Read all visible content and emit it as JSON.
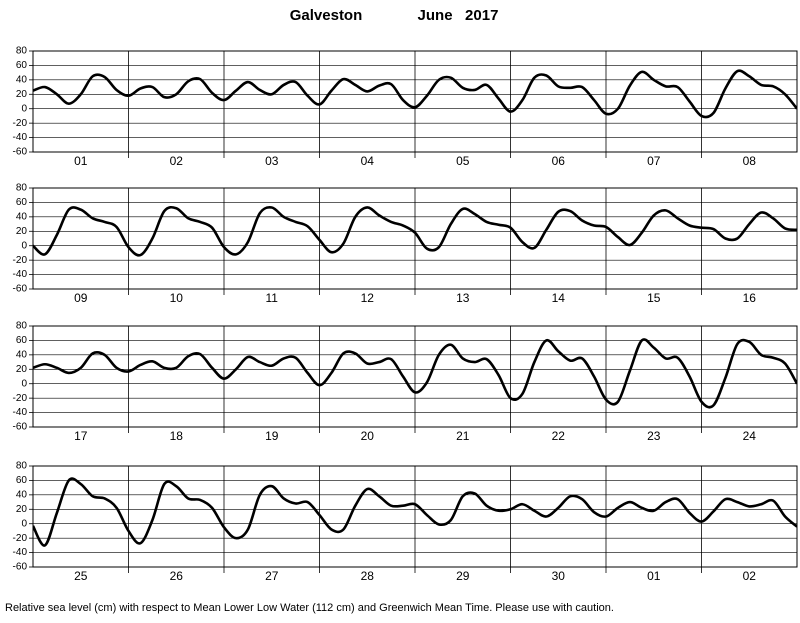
{
  "title": "Galveston",
  "subtitle": "June   2017",
  "footnote": "Relative sea level (cm) with respect to Mean Lower Low Water (112 cm) and Greenwich Mean Time. Please use with caution.",
  "chart_data": [
    {
      "type": "line",
      "grid": true,
      "xlim": [
        0,
        8
      ],
      "ylim": [
        -60,
        80
      ],
      "yticks": [
        -60,
        -40,
        -20,
        0,
        20,
        40,
        60,
        80
      ],
      "xticks": [
        {
          "value": 0.5,
          "label": "01"
        },
        {
          "value": 1.5,
          "label": "02"
        },
        {
          "value": 2.5,
          "label": "03"
        },
        {
          "value": 3.5,
          "label": "04"
        },
        {
          "value": 4.5,
          "label": "05"
        },
        {
          "value": 5.5,
          "label": "06"
        },
        {
          "value": 6.5,
          "label": "07"
        },
        {
          "value": 7.5,
          "label": "08"
        }
      ],
      "x": [
        0,
        0.125,
        0.25,
        0.375,
        0.5,
        0.625,
        0.75,
        0.875,
        1,
        1.125,
        1.25,
        1.375,
        1.5,
        1.625,
        1.75,
        1.875,
        2,
        2.125,
        2.25,
        2.375,
        2.5,
        2.625,
        2.75,
        2.875,
        3,
        3.125,
        3.25,
        3.375,
        3.5,
        3.625,
        3.75,
        3.875,
        4,
        4.125,
        4.25,
        4.375,
        4.5,
        4.625,
        4.75,
        4.875,
        5,
        5.125,
        5.25,
        5.375,
        5.5,
        5.625,
        5.75,
        5.875,
        6,
        6.125,
        6.25,
        6.375,
        6.5,
        6.625,
        6.75,
        6.875,
        7,
        7.125,
        7.25,
        7.375,
        7.5,
        7.625,
        7.75,
        7.875,
        8
      ],
      "series": [
        {
          "color": "#000000",
          "values": [
            25,
            30,
            20,
            7,
            20,
            45,
            44,
            26,
            18,
            28,
            30,
            16,
            20,
            38,
            41,
            22,
            12,
            25,
            37,
            26,
            20,
            33,
            37,
            18,
            6,
            25,
            41,
            33,
            24,
            32,
            34,
            12,
            2,
            18,
            40,
            43,
            29,
            26,
            33,
            14,
            -4,
            12,
            43,
            46,
            31,
            29,
            30,
            12,
            -7,
            0,
            32,
            51,
            40,
            31,
            30,
            10,
            -10,
            -6,
            28,
            52,
            45,
            33,
            31,
            20,
            0
          ]
        }
      ]
    },
    {
      "type": "line",
      "grid": true,
      "xlim": [
        0,
        8
      ],
      "ylim": [
        -60,
        80
      ],
      "yticks": [
        -60,
        -40,
        -20,
        0,
        20,
        40,
        60,
        80
      ],
      "xticks": [
        {
          "value": 0.5,
          "label": "09"
        },
        {
          "value": 1.5,
          "label": "10"
        },
        {
          "value": 2.5,
          "label": "11"
        },
        {
          "value": 3.5,
          "label": "12"
        },
        {
          "value": 4.5,
          "label": "13"
        },
        {
          "value": 5.5,
          "label": "14"
        },
        {
          "value": 6.5,
          "label": "15"
        },
        {
          "value": 7.5,
          "label": "16"
        }
      ],
      "x": [
        0,
        0.125,
        0.25,
        0.375,
        0.5,
        0.625,
        0.75,
        0.875,
        1,
        1.125,
        1.25,
        1.375,
        1.5,
        1.625,
        1.75,
        1.875,
        2,
        2.125,
        2.25,
        2.375,
        2.5,
        2.625,
        2.75,
        2.875,
        3,
        3.125,
        3.25,
        3.375,
        3.5,
        3.625,
        3.75,
        3.875,
        4,
        4.125,
        4.25,
        4.375,
        4.5,
        4.625,
        4.75,
        4.875,
        5,
        5.125,
        5.25,
        5.375,
        5.5,
        5.625,
        5.75,
        5.875,
        6,
        6.125,
        6.25,
        6.375,
        6.5,
        6.625,
        6.75,
        6.875,
        7,
        7.125,
        7.25,
        7.375,
        7.5,
        7.625,
        7.75,
        7.875,
        8
      ],
      "series": [
        {
          "color": "#000000",
          "values": [
            0,
            -12,
            15,
            50,
            50,
            38,
            33,
            26,
            -2,
            -13,
            10,
            48,
            52,
            38,
            33,
            25,
            -2,
            -12,
            5,
            45,
            53,
            40,
            33,
            27,
            8,
            -9,
            3,
            40,
            53,
            42,
            33,
            28,
            18,
            -4,
            -2,
            30,
            51,
            44,
            33,
            29,
            25,
            5,
            -3,
            22,
            47,
            48,
            35,
            28,
            26,
            12,
            1,
            18,
            42,
            49,
            38,
            28,
            25,
            23,
            10,
            10,
            30,
            46,
            38,
            24,
            22
          ]
        }
      ]
    },
    {
      "type": "line",
      "grid": true,
      "xlim": [
        0,
        8
      ],
      "ylim": [
        -60,
        80
      ],
      "yticks": [
        -60,
        -40,
        -20,
        0,
        20,
        40,
        60,
        80
      ],
      "xticks": [
        {
          "value": 0.5,
          "label": "17"
        },
        {
          "value": 1.5,
          "label": "18"
        },
        {
          "value": 2.5,
          "label": "19"
        },
        {
          "value": 3.5,
          "label": "20"
        },
        {
          "value": 4.5,
          "label": "21"
        },
        {
          "value": 5.5,
          "label": "22"
        },
        {
          "value": 6.5,
          "label": "23"
        },
        {
          "value": 7.5,
          "label": "24"
        }
      ],
      "x": [
        0,
        0.125,
        0.25,
        0.375,
        0.5,
        0.625,
        0.75,
        0.875,
        1,
        1.125,
        1.25,
        1.375,
        1.5,
        1.625,
        1.75,
        1.875,
        2,
        2.125,
        2.25,
        2.375,
        2.5,
        2.625,
        2.75,
        2.875,
        3,
        3.125,
        3.25,
        3.375,
        3.5,
        3.625,
        3.75,
        3.875,
        4,
        4.125,
        4.25,
        4.375,
        4.5,
        4.625,
        4.75,
        4.875,
        5,
        5.125,
        5.25,
        5.375,
        5.5,
        5.625,
        5.75,
        5.875,
        6,
        6.125,
        6.25,
        6.375,
        6.5,
        6.625,
        6.75,
        6.875,
        7,
        7.125,
        7.25,
        7.375,
        7.5,
        7.625,
        7.75,
        7.875,
        8
      ],
      "series": [
        {
          "color": "#000000",
          "values": [
            22,
            27,
            22,
            15,
            22,
            42,
            40,
            22,
            17,
            26,
            31,
            22,
            22,
            38,
            41,
            22,
            7,
            20,
            37,
            30,
            25,
            35,
            36,
            15,
            -2,
            15,
            42,
            42,
            28,
            30,
            34,
            10,
            -12,
            2,
            40,
            54,
            35,
            30,
            34,
            12,
            -20,
            -14,
            30,
            60,
            45,
            32,
            35,
            10,
            -22,
            -25,
            18,
            60,
            50,
            35,
            36,
            10,
            -25,
            -30,
            8,
            55,
            58,
            40,
            36,
            28,
            0
          ]
        }
      ]
    },
    {
      "type": "line",
      "grid": true,
      "xlim": [
        0,
        8
      ],
      "ylim": [
        -60,
        80
      ],
      "yticks": [
        -60,
        -40,
        -20,
        0,
        20,
        40,
        60,
        80
      ],
      "xticks": [
        {
          "value": 0.5,
          "label": "25"
        },
        {
          "value": 1.5,
          "label": "26"
        },
        {
          "value": 2.5,
          "label": "27"
        },
        {
          "value": 3.5,
          "label": "28"
        },
        {
          "value": 4.5,
          "label": "29"
        },
        {
          "value": 5.5,
          "label": "30"
        },
        {
          "value": 6.5,
          "label": "01"
        },
        {
          "value": 7.5,
          "label": "02"
        }
      ],
      "x": [
        0,
        0.125,
        0.25,
        0.375,
        0.5,
        0.625,
        0.75,
        0.875,
        1,
        1.125,
        1.25,
        1.375,
        1.5,
        1.625,
        1.75,
        1.875,
        2,
        2.125,
        2.25,
        2.375,
        2.5,
        2.625,
        2.75,
        2.875,
        3,
        3.125,
        3.25,
        3.375,
        3.5,
        3.625,
        3.75,
        3.875,
        4,
        4.125,
        4.25,
        4.375,
        4.5,
        4.625,
        4.75,
        4.875,
        5,
        5.125,
        5.25,
        5.375,
        5.5,
        5.625,
        5.75,
        5.875,
        6,
        6.125,
        6.25,
        6.375,
        6.5,
        6.625,
        6.75,
        6.875,
        7,
        7.125,
        7.25,
        7.375,
        7.5,
        7.625,
        7.75,
        7.875,
        8
      ],
      "series": [
        {
          "color": "#000000",
          "values": [
            -3,
            -30,
            15,
            60,
            55,
            38,
            35,
            22,
            -10,
            -27,
            5,
            55,
            52,
            35,
            33,
            22,
            -5,
            -20,
            -8,
            40,
            52,
            35,
            28,
            30,
            12,
            -8,
            -8,
            25,
            48,
            38,
            25,
            25,
            27,
            12,
            -1,
            5,
            38,
            42,
            25,
            18,
            20,
            27,
            18,
            10,
            22,
            38,
            34,
            16,
            10,
            22,
            30,
            22,
            18,
            30,
            34,
            15,
            3,
            17,
            34,
            30,
            24,
            27,
            32,
            10,
            -4
          ]
        }
      ]
    }
  ]
}
